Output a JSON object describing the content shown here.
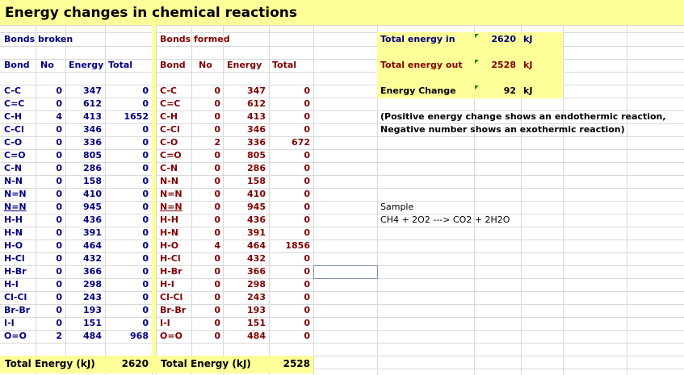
{
  "title": "Energy changes in chemical reactions",
  "broken": {
    "section_label": "Bonds broken",
    "headers": {
      "bond": "Bond",
      "no": "No",
      "energy": "Energy",
      "total": "Total"
    },
    "rows": [
      {
        "bond": "C-C",
        "no": "0",
        "energy": "347",
        "total": "0"
      },
      {
        "bond": "C=C",
        "no": "0",
        "energy": "612",
        "total": "0"
      },
      {
        "bond": "C-H",
        "no": "4",
        "energy": "413",
        "total": "1652"
      },
      {
        "bond": "C-Cl",
        "no": "0",
        "energy": "346",
        "total": "0"
      },
      {
        "bond": "C-O",
        "no": "0",
        "energy": "336",
        "total": "0"
      },
      {
        "bond": "C=O",
        "no": "0",
        "energy": "805",
        "total": "0"
      },
      {
        "bond": "C-N",
        "no": "0",
        "energy": "286",
        "total": "0"
      },
      {
        "bond": "N-N",
        "no": "0",
        "energy": "158",
        "total": "0"
      },
      {
        "bond": "N=N",
        "no": "0",
        "energy": "410",
        "total": "0"
      },
      {
        "bond": "N=N",
        "no": "0",
        "energy": "945",
        "total": "0"
      },
      {
        "bond": "H-H",
        "no": "0",
        "energy": "436",
        "total": "0"
      },
      {
        "bond": "H-N",
        "no": "0",
        "energy": "391",
        "total": "0"
      },
      {
        "bond": "H-O",
        "no": "0",
        "energy": "464",
        "total": "0"
      },
      {
        "bond": "H-Cl",
        "no": "0",
        "energy": "432",
        "total": "0"
      },
      {
        "bond": "H-Br",
        "no": "0",
        "energy": "366",
        "total": "0"
      },
      {
        "bond": "H-I",
        "no": "0",
        "energy": "298",
        "total": "0"
      },
      {
        "bond": "Cl-Cl",
        "no": "0",
        "energy": "243",
        "total": "0"
      },
      {
        "bond": "Br-Br",
        "no": "0",
        "energy": "193",
        "total": "0"
      },
      {
        "bond": "I-I",
        "no": "0",
        "energy": "151",
        "total": "0"
      },
      {
        "bond": "O=O",
        "no": "2",
        "energy": "484",
        "total": "968"
      }
    ],
    "total_label": "Total Energy (kJ)",
    "total_value": "2620"
  },
  "formed": {
    "section_label": "Bonds formed",
    "headers": {
      "bond": "Bond",
      "no": "No",
      "energy": "Energy",
      "total": "Total"
    },
    "rows": [
      {
        "bond": "C-C",
        "no": "0",
        "energy": "347",
        "total": "0"
      },
      {
        "bond": "C=C",
        "no": "0",
        "energy": "612",
        "total": "0"
      },
      {
        "bond": "C-H",
        "no": "0",
        "energy": "413",
        "total": "0"
      },
      {
        "bond": "C-Cl",
        "no": "0",
        "energy": "346",
        "total": "0"
      },
      {
        "bond": "C-O",
        "no": "2",
        "energy": "336",
        "total": "672"
      },
      {
        "bond": "C=O",
        "no": "0",
        "energy": "805",
        "total": "0"
      },
      {
        "bond": "C-N",
        "no": "0",
        "energy": "286",
        "total": "0"
      },
      {
        "bond": "N-N",
        "no": "0",
        "energy": "158",
        "total": "0"
      },
      {
        "bond": "N=N",
        "no": "0",
        "energy": "410",
        "total": "0"
      },
      {
        "bond": "N=N",
        "no": "0",
        "energy": "945",
        "total": "0"
      },
      {
        "bond": "H-H",
        "no": "0",
        "energy": "436",
        "total": "0"
      },
      {
        "bond": "H-N",
        "no": "0",
        "energy": "391",
        "total": "0"
      },
      {
        "bond": "H-O",
        "no": "4",
        "energy": "464",
        "total": "1856"
      },
      {
        "bond": "H-Cl",
        "no": "0",
        "energy": "432",
        "total": "0"
      },
      {
        "bond": "H-Br",
        "no": "0",
        "energy": "366",
        "total": "0"
      },
      {
        "bond": "H-I",
        "no": "0",
        "energy": "298",
        "total": "0"
      },
      {
        "bond": "Cl-Cl",
        "no": "0",
        "energy": "243",
        "total": "0"
      },
      {
        "bond": "Br-Br",
        "no": "0",
        "energy": "193",
        "total": "0"
      },
      {
        "bond": "I-I",
        "no": "0",
        "energy": "151",
        "total": "0"
      },
      {
        "bond": "O=O",
        "no": "0",
        "energy": "484",
        "total": "0"
      }
    ],
    "total_label": "Total Energy (kJ)",
    "total_value": "2528"
  },
  "summary": {
    "energy_in_label": "Total energy in",
    "energy_in_value": "2620",
    "energy_in_unit": "kJ",
    "energy_out_label": "Total energy out",
    "energy_out_value": "2528",
    "energy_out_unit": "kJ",
    "change_label": "Energy Change",
    "change_value": "92",
    "change_unit": "kJ"
  },
  "note_line1": "(Positive energy change shows an endothermic reaction,",
  "note_line2": "Negative number shows an exothermic reaction)",
  "sample_label": "Sample",
  "sample_equation": "CH4 + 2O2 --->  CO2 + 2H2O",
  "colors": {
    "highlight": "#ffff99",
    "broken_text": "#000080",
    "formed_text": "#800000",
    "grid": "#d9d9d9",
    "triangle": "#1a8a1a"
  }
}
